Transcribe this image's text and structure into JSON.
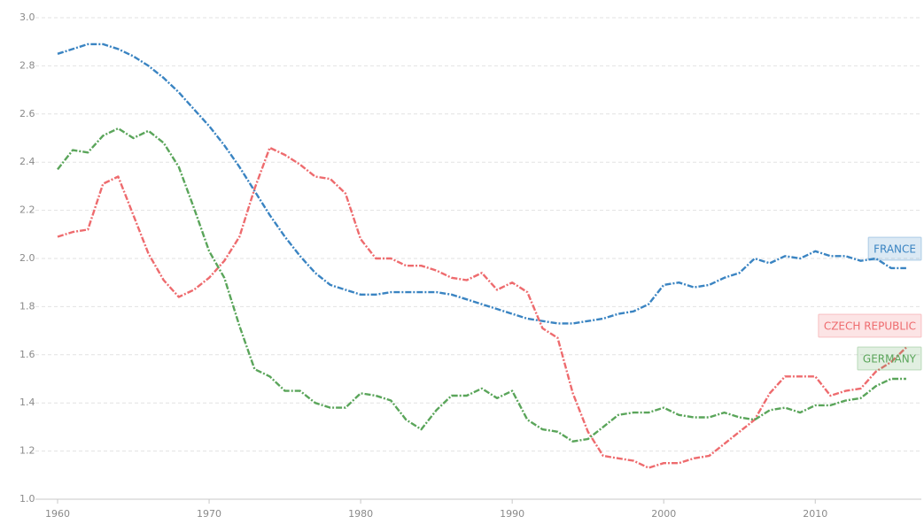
{
  "chart_data": {
    "type": "line",
    "x": [
      1960,
      1961,
      1962,
      1963,
      1964,
      1965,
      1966,
      1967,
      1968,
      1969,
      1970,
      1971,
      1972,
      1973,
      1974,
      1975,
      1976,
      1977,
      1978,
      1979,
      1980,
      1981,
      1982,
      1983,
      1984,
      1985,
      1986,
      1987,
      1988,
      1989,
      1990,
      1991,
      1992,
      1993,
      1994,
      1995,
      1996,
      1997,
      1998,
      1999,
      2000,
      2001,
      2002,
      2003,
      2004,
      2005,
      2006,
      2007,
      2008,
      2009,
      2010,
      2011,
      2012,
      2013,
      2014,
      2015,
      2016
    ],
    "series": [
      {
        "name": "FRANCE",
        "color": "#3a84c2",
        "values": [
          2.85,
          2.87,
          2.89,
          2.89,
          2.87,
          2.84,
          2.8,
          2.75,
          2.69,
          2.62,
          2.55,
          2.47,
          2.38,
          2.28,
          2.18,
          2.09,
          2.01,
          1.94,
          1.89,
          1.87,
          1.85,
          1.85,
          1.86,
          1.86,
          1.86,
          1.86,
          1.85,
          1.83,
          1.81,
          1.79,
          1.77,
          1.75,
          1.74,
          1.73,
          1.73,
          1.74,
          1.75,
          1.77,
          1.78,
          1.81,
          1.89,
          1.9,
          1.88,
          1.89,
          1.92,
          1.94,
          2.0,
          1.98,
          2.01,
          2.0,
          2.03,
          2.01,
          2.01,
          1.99,
          2.0,
          1.96,
          1.96
        ]
      },
      {
        "name": "CZECH REPUBLIC",
        "color": "#ee6b6e",
        "values": [
          2.09,
          2.11,
          2.12,
          2.31,
          2.34,
          2.18,
          2.02,
          1.91,
          1.84,
          1.87,
          1.92,
          1.99,
          2.09,
          2.29,
          2.46,
          2.43,
          2.39,
          2.34,
          2.33,
          2.27,
          2.08,
          2.0,
          2.0,
          1.97,
          1.97,
          1.95,
          1.92,
          1.91,
          1.94,
          1.87,
          1.9,
          1.86,
          1.71,
          1.67,
          1.44,
          1.28,
          1.18,
          1.17,
          1.16,
          1.13,
          1.15,
          1.15,
          1.17,
          1.18,
          1.23,
          1.28,
          1.33,
          1.44,
          1.51,
          1.51,
          1.51,
          1.43,
          1.45,
          1.46,
          1.53,
          1.57,
          1.63
        ]
      },
      {
        "name": "GERMANY",
        "color": "#5aa55a",
        "values": [
          2.37,
          2.45,
          2.44,
          2.51,
          2.54,
          2.5,
          2.53,
          2.48,
          2.38,
          2.21,
          2.03,
          1.92,
          1.72,
          1.54,
          1.51,
          1.45,
          1.45,
          1.4,
          1.38,
          1.38,
          1.44,
          1.43,
          1.41,
          1.33,
          1.29,
          1.37,
          1.43,
          1.43,
          1.46,
          1.42,
          1.45,
          1.33,
          1.29,
          1.28,
          1.24,
          1.25,
          1.3,
          1.35,
          1.36,
          1.36,
          1.38,
          1.35,
          1.34,
          1.34,
          1.36,
          1.34,
          1.33,
          1.37,
          1.38,
          1.36,
          1.39,
          1.39,
          1.41,
          1.42,
          1.47,
          1.5,
          1.5
        ]
      }
    ],
    "xlim": [
      1960,
      2017
    ],
    "xticks": [
      1960,
      1970,
      1980,
      1990,
      2000,
      2010
    ],
    "ylim": [
      1.0,
      3.0
    ],
    "yticks": [
      {
        "value": 1.0,
        "label": "1.0"
      },
      1.2,
      1.4,
      1.6,
      1.8,
      {
        "value": 2.0,
        "label": "2.0"
      },
      2.2,
      2.4,
      2.6,
      2.8,
      {
        "value": 3.0,
        "label": "3.0"
      }
    ],
    "grid": true
  }
}
